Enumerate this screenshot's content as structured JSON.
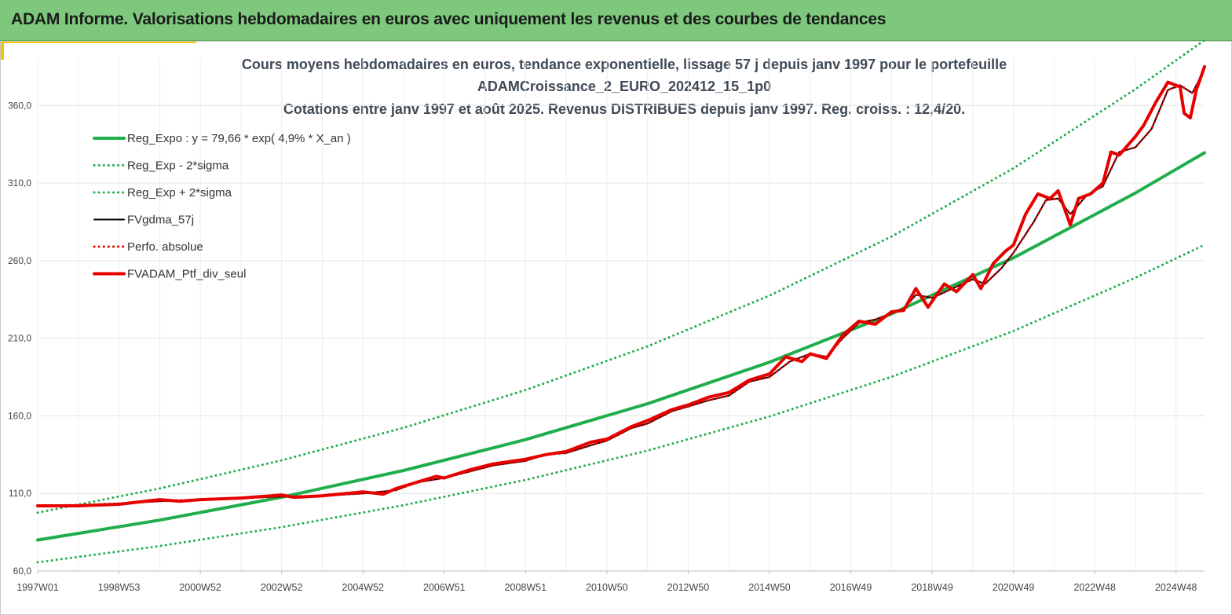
{
  "banner": {
    "title": "ADAM Informe. Valorisations hebdomadaires en euros avec uniquement les revenus et des courbes de tendances"
  },
  "colors": {
    "banner_bg": "#7dc87d",
    "accent": "#f5c400",
    "trend_green": "#1fae4b",
    "black_series": "#000000",
    "red_series": "#e60000"
  },
  "chart_data": {
    "type": "line",
    "title_lines": [
      "Cours moyens hebdomadaires  en euros, tendance exponentielle, lissage 57 j depuis janv 1997 pour le portefeuille",
      "ADAMCroissance_2_EURO_202412_15_1p0",
      "Cotations  entre janv 1997 et août 2025. Revenus DISTRIBUES depuis janv 1997. Reg. croiss. : 12,4/20."
    ],
    "x_tick_labels": [
      "1997W01",
      "1998W53",
      "2000W52",
      "2002W52",
      "2004W52",
      "2006W51",
      "2008W51",
      "2010W50",
      "2012W50",
      "2014W50",
      "2016W49",
      "2018W49",
      "2020W49",
      "2022W48",
      "2024W48"
    ],
    "x_ticks": [
      1997.0,
      1999.0,
      2001.0,
      2003.0,
      2005.0,
      2007.0,
      2009.0,
      2011.0,
      2013.0,
      2015.0,
      2017.0,
      2019.0,
      2021.0,
      2023.0,
      2025.0
    ],
    "xlim": [
      1997.0,
      2025.7
    ],
    "ylim": [
      60,
      390
    ],
    "y_ticks": [
      60,
      110,
      160,
      210,
      260,
      310,
      360
    ],
    "y_tick_labels": [
      "60,0",
      "110,0",
      "160,0",
      "210,0",
      "260,0",
      "310,0",
      "360,0"
    ],
    "grid": true,
    "legend_placement": "top-left",
    "series": [
      {
        "name": "Reg_Expo : y = 79,66 * exp( 4,9% *  X_an )",
        "style": "solid-thick",
        "color": "#1fae4b",
        "x": [
          1997.0,
          2000.0,
          2003.0,
          2006.0,
          2009.0,
          2012.0,
          2015.0,
          2018.0,
          2021.0,
          2024.0,
          2025.7
        ],
        "y": [
          80.0,
          92.8,
          107.6,
          124.8,
          144.7,
          167.8,
          194.6,
          225.7,
          261.8,
          303.6,
          329.5
        ]
      },
      {
        "name": "Reg_Exp - 2*sigma",
        "style": "dotted",
        "color": "#1fae4b",
        "x": [
          1997.0,
          2000.0,
          2003.0,
          2006.0,
          2009.0,
          2012.0,
          2015.0,
          2018.0,
          2021.0,
          2024.0,
          2025.7
        ],
        "y": [
          65.6,
          76.1,
          88.3,
          102.4,
          118.7,
          137.6,
          159.6,
          185.1,
          214.7,
          249.0,
          270.2
        ]
      },
      {
        "name": "Reg_Exp + 2*sigma",
        "style": "dotted",
        "color": "#1fae4b",
        "x": [
          1997.0,
          2000.0,
          2003.0,
          2006.0,
          2009.0,
          2012.0,
          2015.0,
          2018.0,
          2021.0,
          2024.0,
          2025.7
        ],
        "y": [
          97.6,
          113.2,
          131.3,
          152.3,
          176.6,
          204.8,
          237.5,
          275.5,
          319.5,
          370.5,
          402.1
        ]
      },
      {
        "name": "FVgdma_57j",
        "style": "solid",
        "color": "#000000",
        "x": [
          1997.0,
          1998.0,
          1999.0,
          2000.0,
          2001.0,
          2002.0,
          2003.0,
          2004.0,
          2005.0,
          2005.8,
          2006.3,
          2007.0,
          2007.6,
          2008.2,
          2009.0,
          2009.5,
          2010.0,
          2010.6,
          2011.0,
          2011.6,
          2012.0,
          2012.6,
          2013.0,
          2013.5,
          2014.0,
          2014.5,
          2015.0,
          2015.5,
          2016.0,
          2016.4,
          2016.8,
          2017.2,
          2017.6,
          2018.0,
          2018.3,
          2018.6,
          2019.0,
          2019.5,
          2020.0,
          2020.3,
          2020.7,
          2021.0,
          2021.5,
          2021.8,
          2022.1,
          2022.4,
          2022.8,
          2023.2,
          2023.6,
          2024.0,
          2024.4,
          2024.8,
          2025.1,
          2025.4,
          2025.6
        ],
        "y": [
          102.0,
          102.5,
          103.5,
          105.0,
          106.0,
          107.0,
          108.0,
          108.5,
          110.0,
          112.0,
          117.0,
          120.0,
          124.0,
          128.0,
          131.0,
          135.0,
          136.0,
          141.0,
          144.0,
          152.0,
          155.0,
          163.0,
          166.0,
          170.0,
          173.0,
          182.0,
          185.0,
          195.0,
          200.0,
          198.0,
          210.0,
          220.0,
          222.0,
          226.0,
          229.0,
          238.0,
          236.0,
          242.0,
          248.0,
          245.0,
          255.0,
          265.0,
          285.0,
          299.0,
          300.0,
          290.0,
          302.0,
          308.0,
          330.0,
          333.0,
          345.0,
          370.0,
          373.0,
          368.0,
          378.0
        ]
      },
      {
        "name": "Perfo. absolue",
        "style": "dotted",
        "color": "#e60000",
        "x": [
          1997.0,
          1998.0,
          1999.0,
          2000.0,
          2001.0,
          2002.0,
          2003.0,
          2004.0,
          2005.0,
          2005.8,
          2006.3,
          2007.0,
          2007.6,
          2008.2,
          2009.0,
          2009.5,
          2010.0,
          2010.6,
          2011.0,
          2011.6,
          2012.0,
          2012.6,
          2013.0,
          2013.5,
          2014.0,
          2014.5,
          2015.0,
          2015.5,
          2016.0,
          2016.4,
          2016.8,
          2017.2,
          2017.6,
          2018.0,
          2018.3,
          2018.6,
          2019.0,
          2019.5,
          2020.0,
          2020.3,
          2020.7,
          2021.0,
          2021.5,
          2021.8,
          2022.1,
          2022.4,
          2022.8,
          2023.2,
          2023.6,
          2024.0,
          2024.4,
          2024.8,
          2025.1,
          2025.4,
          2025.6
        ],
        "y": [
          102.0,
          102.5,
          103.5,
          105.0,
          106.0,
          107.0,
          108.0,
          108.5,
          110.0,
          112.0,
          117.0,
          120.0,
          124.0,
          128.0,
          131.0,
          135.0,
          136.0,
          141.0,
          144.0,
          152.0,
          155.0,
          163.0,
          166.0,
          170.0,
          173.0,
          182.0,
          185.0,
          195.0,
          200.0,
          198.0,
          210.0,
          220.0,
          222.0,
          226.0,
          229.0,
          238.0,
          236.0,
          242.0,
          248.0,
          245.0,
          255.0,
          265.0,
          285.0,
          299.0,
          300.0,
          290.0,
          302.0,
          308.0,
          330.0,
          333.0,
          345.0,
          370.0,
          373.0,
          368.0,
          378.0
        ]
      },
      {
        "name": "FVADAM_Ptf_div_seul",
        "style": "solid-thick",
        "color": "#e60000",
        "x": [
          1997.0,
          1998.0,
          1999.0,
          2000.0,
          2000.5,
          2001.0,
          2002.0,
          2003.0,
          2003.3,
          2004.0,
          2005.0,
          2005.5,
          2005.8,
          2006.3,
          2006.8,
          2007.0,
          2007.6,
          2008.2,
          2009.0,
          2009.5,
          2010.0,
          2010.6,
          2011.0,
          2011.6,
          2012.0,
          2012.6,
          2013.0,
          2013.5,
          2014.0,
          2014.5,
          2015.0,
          2015.4,
          2015.8,
          2016.0,
          2016.4,
          2016.8,
          2017.2,
          2017.6,
          2018.0,
          2018.3,
          2018.6,
          2018.9,
          2019.3,
          2019.6,
          2020.0,
          2020.2,
          2020.5,
          2020.8,
          2021.0,
          2021.3,
          2021.6,
          2021.9,
          2022.1,
          2022.4,
          2022.6,
          2022.9,
          2023.2,
          2023.4,
          2023.6,
          2024.0,
          2024.2,
          2024.5,
          2024.8,
          2025.1,
          2025.2,
          2025.35,
          2025.5,
          2025.7
        ],
        "y": [
          102.0,
          102.0,
          103.0,
          106.0,
          105.0,
          106.0,
          107.0,
          109.0,
          107.5,
          108.5,
          111.0,
          109.5,
          113.0,
          117.0,
          121.0,
          120.0,
          125.0,
          129.0,
          132.0,
          135.0,
          137.0,
          143.0,
          145.0,
          153.0,
          157.0,
          164.0,
          167.0,
          172.0,
          175.0,
          183.0,
          187.0,
          198.0,
          195.0,
          200.0,
          197.0,
          212.0,
          221.0,
          219.0,
          227.0,
          228.0,
          242.0,
          230.0,
          245.0,
          240.0,
          251.0,
          242.0,
          258.0,
          266.0,
          270.0,
          290.0,
          303.0,
          300.0,
          305.0,
          283.0,
          300.0,
          303.0,
          310.0,
          330.0,
          328.0,
          340.0,
          347.0,
          362.0,
          375.0,
          372.0,
          355.0,
          352.0,
          370.0,
          385.0
        ]
      }
    ]
  }
}
